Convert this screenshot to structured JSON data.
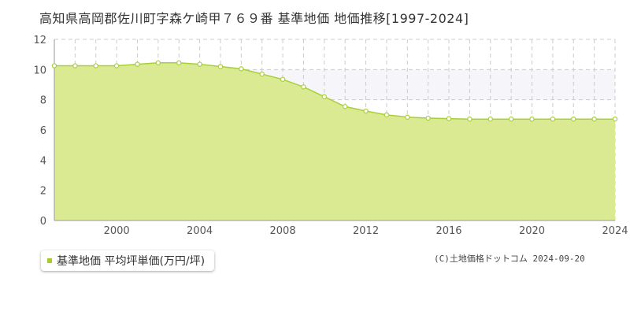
{
  "title": "高知県高岡郡佐川町字森ケ崎甲７６９番 基準地価 地価推移[1997-2024]",
  "legend": {
    "label": "基準地価 平均坪単価(万円/坪)"
  },
  "copyright": "(C)土地価格ドットコム 2024-09-20",
  "colors": {
    "area_fill": "#d9ea92",
    "line": "#a8cf3a",
    "marker_fill": "#ffffff",
    "grid": "#cccccc",
    "band": "#f6f5fa",
    "legend_swatch": "#a6cc2e"
  },
  "chart_data": {
    "type": "area",
    "title": "高知県高岡郡佐川町字森ケ崎甲７６９番 基準地価 地価推移[1997-2024]",
    "xlabel": "",
    "ylabel": "",
    "x": [
      1997,
      1998,
      1999,
      2000,
      2001,
      2002,
      2003,
      2004,
      2005,
      2006,
      2007,
      2008,
      2009,
      2010,
      2011,
      2012,
      2013,
      2014,
      2015,
      2016,
      2017,
      2018,
      2019,
      2020,
      2021,
      2022,
      2023,
      2024
    ],
    "series": [
      {
        "name": "基準地価 平均坪単価(万円/坪)",
        "values": [
          10.25,
          10.25,
          10.25,
          10.25,
          10.35,
          10.45,
          10.45,
          10.35,
          10.2,
          10.05,
          9.7,
          9.35,
          8.85,
          8.2,
          7.55,
          7.25,
          7.0,
          6.85,
          6.78,
          6.75,
          6.72,
          6.72,
          6.72,
          6.72,
          6.72,
          6.72,
          6.72,
          6.72
        ]
      }
    ],
    "xlim": [
      1997,
      2024
    ],
    "ylim": [
      0,
      12
    ],
    "xticks": [
      2000,
      2004,
      2008,
      2012,
      2016,
      2020,
      2024
    ],
    "yticks": [
      0,
      2,
      4,
      6,
      8,
      10,
      12
    ],
    "grid": true,
    "highlight_band": [
      8,
      10
    ],
    "legend_position": "bottom-left"
  }
}
